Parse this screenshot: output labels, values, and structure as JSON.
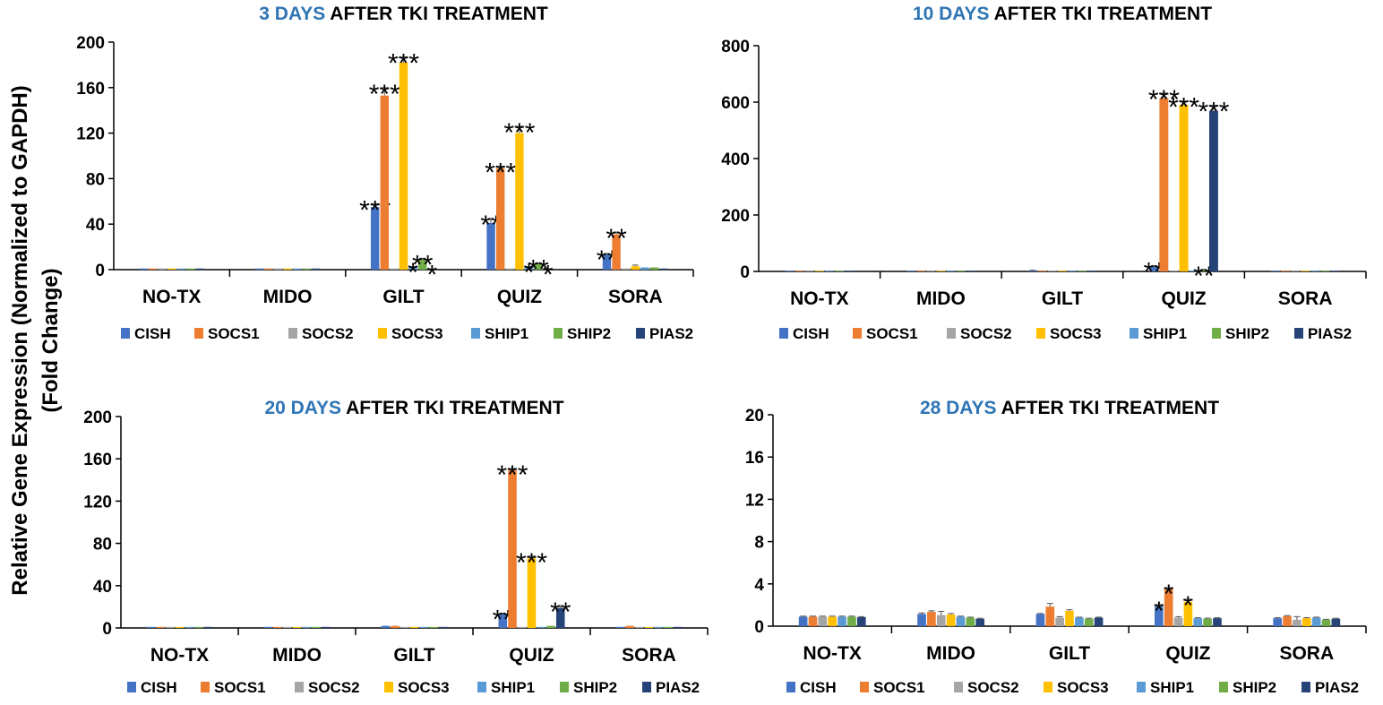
{
  "y_axis_label": {
    "line1": "Relative Gene Expression (Normalized to GAPDH)",
    "line2": "(Fold Change)"
  },
  "series_names": [
    "CISH",
    "SOCS1",
    "SOCS2",
    "SOCS3",
    "SHIP1",
    "SHIP2",
    "PIAS2"
  ],
  "colors": {
    "CISH": "#4472C4",
    "SOCS1": "#ED7D31",
    "SOCS2": "#A5A5A5",
    "SOCS3": "#FFC000",
    "SHIP1": "#5B9BD5",
    "SHIP2": "#70AD47",
    "PIAS2": "#264478",
    "title_accent": "#2E75B6"
  },
  "chart_data": [
    {
      "type": "bar",
      "title_highlight": "3 DAYS",
      "title_rest": "AFTER TKI TREATMENT",
      "categories": [
        "NO-TX",
        "MIDO",
        "GILT",
        "QUIZ",
        "SORA"
      ],
      "ylim": [
        0,
        200
      ],
      "yticks": [
        "0",
        "40",
        "80",
        "120",
        "160",
        "200"
      ],
      "series": [
        {
          "name": "CISH",
          "values": [
            1,
            1,
            55,
            41,
            13
          ],
          "errors": [
            0,
            0,
            3,
            4,
            1
          ],
          "stars": [
            "",
            "",
            "***",
            "**",
            "**"
          ]
        },
        {
          "name": "SOCS1",
          "values": [
            1,
            1,
            153,
            89,
            31
          ],
          "errors": [
            0,
            0,
            7,
            2,
            2
          ],
          "stars": [
            "",
            "",
            "***",
            "***",
            "**"
          ]
        },
        {
          "name": "SOCS2",
          "values": [
            1,
            1,
            1,
            1,
            1
          ],
          "errors": [
            0,
            0,
            0,
            0,
            0
          ],
          "stars": [
            "",
            "",
            "",
            "",
            ""
          ]
        },
        {
          "name": "SOCS3",
          "values": [
            1,
            1,
            182,
            120,
            3
          ],
          "errors": [
            0,
            0,
            5,
            6,
            1
          ],
          "stars": [
            "",
            "",
            "***",
            "***",
            ""
          ]
        },
        {
          "name": "SHIP1",
          "values": [
            1,
            1,
            3,
            3,
            2
          ],
          "errors": [
            0,
            0,
            0,
            0,
            0
          ],
          "stars": [
            "",
            "",
            "*",
            "*",
            ""
          ]
        },
        {
          "name": "SHIP2",
          "values": [
            1,
            1,
            9,
            5,
            2
          ],
          "errors": [
            0,
            0,
            1,
            1,
            0
          ],
          "stars": [
            "",
            "",
            "**",
            "**",
            ""
          ]
        },
        {
          "name": "PIAS2",
          "values": [
            1,
            1,
            1,
            1,
            1
          ],
          "errors": [
            0,
            0,
            0,
            0,
            0
          ],
          "stars": [
            "",
            "",
            "*",
            "*",
            ""
          ]
        }
      ]
    },
    {
      "type": "bar",
      "title_highlight": "10 DAYS",
      "title_rest": "AFTER TKI TREATMENT",
      "categories": [
        "NO-TX",
        "MIDO",
        "GILT",
        "QUIZ",
        "SORA"
      ],
      "ylim": [
        0,
        800
      ],
      "yticks": [
        "0",
        "200",
        "400",
        "600",
        "800"
      ],
      "series": [
        {
          "name": "CISH",
          "values": [
            1,
            1,
            3,
            17,
            1
          ],
          "errors": [
            0,
            0,
            1,
            3,
            0
          ],
          "stars": [
            "",
            "",
            "",
            "**",
            ""
          ]
        },
        {
          "name": "SOCS1",
          "values": [
            1,
            1,
            2,
            614,
            1
          ],
          "errors": [
            0,
            0,
            0,
            18,
            0
          ],
          "stars": [
            "",
            "",
            "",
            "***",
            ""
          ]
        },
        {
          "name": "SOCS2",
          "values": [
            1,
            2,
            2,
            3,
            1
          ],
          "errors": [
            0,
            0,
            0,
            0,
            0
          ],
          "stars": [
            "",
            "",
            "",
            "",
            ""
          ]
        },
        {
          "name": "SOCS3",
          "values": [
            1,
            1,
            1,
            590,
            1
          ],
          "errors": [
            0,
            0,
            0,
            14,
            0
          ],
          "stars": [
            "",
            "",
            "",
            "***",
            ""
          ]
        },
        {
          "name": "SHIP1",
          "values": [
            1,
            1,
            1,
            2,
            1
          ],
          "errors": [
            0,
            0,
            0,
            0,
            0
          ],
          "stars": [
            "",
            "",
            "",
            "",
            ""
          ]
        },
        {
          "name": "SHIP2",
          "values": [
            1,
            1,
            1,
            6,
            1
          ],
          "errors": [
            0,
            0,
            0,
            1,
            0
          ],
          "stars": [
            "",
            "",
            "",
            "**",
            ""
          ]
        },
        {
          "name": "PIAS2",
          "values": [
            1,
            1,
            1,
            569,
            1
          ],
          "errors": [
            0,
            0,
            0,
            20,
            0
          ],
          "stars": [
            "",
            "",
            "",
            "***",
            ""
          ]
        }
      ]
    },
    {
      "type": "bar",
      "title_highlight": "20 DAYS",
      "title_rest": "AFTER TKI TREATMENT",
      "categories": [
        "NO-TX",
        "MIDO",
        "GILT",
        "QUIZ",
        "SORA"
      ],
      "ylim": [
        0,
        200
      ],
      "yticks": [
        "0",
        "40",
        "80",
        "120",
        "160",
        "200"
      ],
      "series": [
        {
          "name": "CISH",
          "values": [
            1,
            1,
            2,
            13,
            1
          ],
          "errors": [
            0,
            0,
            0,
            1,
            0
          ],
          "stars": [
            "",
            "",
            "",
            "**",
            ""
          ]
        },
        {
          "name": "SOCS1",
          "values": [
            1,
            1,
            2,
            149,
            2
          ],
          "errors": [
            0,
            0,
            0,
            2,
            0
          ],
          "stars": [
            "",
            "",
            "",
            "***",
            ""
          ]
        },
        {
          "name": "SOCS2",
          "values": [
            1,
            1,
            1,
            1,
            1
          ],
          "errors": [
            0,
            0,
            0,
            0,
            0
          ],
          "stars": [
            "",
            "",
            "",
            "",
            ""
          ]
        },
        {
          "name": "SOCS3",
          "values": [
            1,
            1,
            1,
            66,
            1
          ],
          "errors": [
            0,
            0,
            0,
            2,
            0
          ],
          "stars": [
            "",
            "",
            "",
            "***",
            ""
          ]
        },
        {
          "name": "SHIP1",
          "values": [
            1,
            1,
            1,
            1,
            1
          ],
          "errors": [
            0,
            0,
            0,
            0,
            0
          ],
          "stars": [
            "",
            "",
            "",
            "",
            ""
          ]
        },
        {
          "name": "SHIP2",
          "values": [
            1,
            1,
            1,
            2,
            1
          ],
          "errors": [
            0,
            0,
            0,
            0,
            0
          ],
          "stars": [
            "",
            "",
            "",
            "",
            ""
          ]
        },
        {
          "name": "PIAS2",
          "values": [
            1,
            1,
            1,
            19,
            1
          ],
          "errors": [
            0,
            0,
            0,
            2,
            0
          ],
          "stars": [
            "",
            "",
            "",
            "**",
            ""
          ]
        }
      ]
    },
    {
      "type": "bar",
      "title_highlight": "28 DAYS",
      "title_rest": "AFTER TKI TREATMENT",
      "categories": [
        "NO-TX",
        "MIDO",
        "GILT",
        "QUIZ",
        "SORA"
      ],
      "ylim": [
        0,
        20
      ],
      "yticks": [
        "0",
        "4",
        "8",
        "12",
        "16",
        "20"
      ],
      "series": [
        {
          "name": "CISH",
          "values": [
            0.9,
            1.15,
            1.15,
            1.85,
            0.75
          ],
          "errors": [
            0.05,
            0.1,
            0.05,
            0.2,
            0.05
          ],
          "stars": [
            "",
            "",
            "",
            "*",
            ""
          ]
        },
        {
          "name": "SOCS1",
          "values": [
            0.9,
            1.35,
            1.85,
            3.5,
            0.95
          ],
          "errors": [
            0.05,
            0.1,
            0.3,
            0.15,
            0.05
          ],
          "stars": [
            "",
            "",
            "",
            "*",
            ""
          ]
        },
        {
          "name": "SOCS2",
          "values": [
            0.9,
            1.05,
            0.8,
            0.8,
            0.6
          ],
          "errors": [
            0.05,
            0.35,
            0.1,
            0.1,
            0.3
          ],
          "stars": [
            "",
            "",
            "",
            "",
            ""
          ]
        },
        {
          "name": "SOCS3",
          "values": [
            0.9,
            1.1,
            1.45,
            2.3,
            0.75
          ],
          "errors": [
            0.05,
            0.1,
            0.1,
            0.25,
            0.05
          ],
          "stars": [
            "",
            "",
            "",
            "*",
            ""
          ]
        },
        {
          "name": "SHIP1",
          "values": [
            0.9,
            0.9,
            0.8,
            0.75,
            0.8
          ],
          "errors": [
            0.05,
            0.05,
            0.05,
            0.05,
            0.05
          ],
          "stars": [
            "",
            "",
            "",
            "",
            ""
          ]
        },
        {
          "name": "SHIP2",
          "values": [
            0.9,
            0.8,
            0.7,
            0.7,
            0.6
          ],
          "errors": [
            0.05,
            0.05,
            0.05,
            0.05,
            0.05
          ],
          "stars": [
            "",
            "",
            "",
            "",
            ""
          ]
        },
        {
          "name": "PIAS2",
          "values": [
            0.85,
            0.7,
            0.8,
            0.75,
            0.7
          ],
          "errors": [
            0.05,
            0.05,
            0.05,
            0.05,
            0.05
          ],
          "stars": [
            "",
            "",
            "",
            "",
            ""
          ]
        }
      ]
    }
  ]
}
